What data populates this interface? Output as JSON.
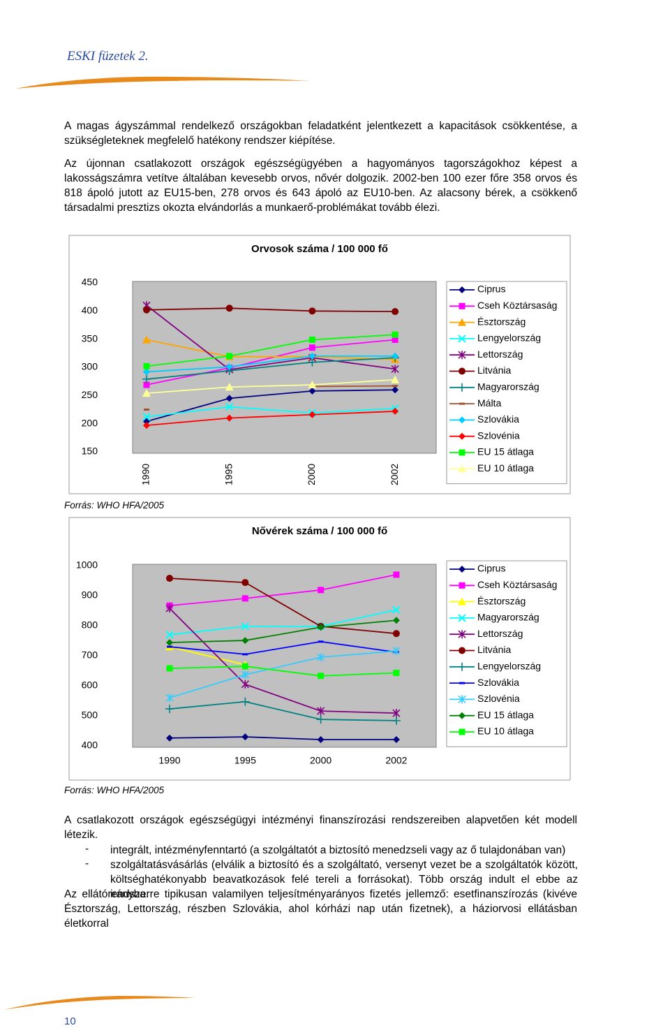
{
  "header": {
    "title": "ESKI füzetek 2."
  },
  "paragraphs": [
    "A magas ágyszámmal rendelkező országokban feladatként jelentkezett a kapacitások csökkentése, a szükségleteknek megfelelő hatékony rendszer kiépítése.",
    "Az újonnan csatlakozott országok egészségügyében a hagyományos tagországokhoz képest a lakosságszámra vetítve általában kevesebb orvos, nővér dolgozik. 2002-ben 100 ezer főre 358 orvos és 818 ápoló jutott az EU15-ben, 278 orvos és 643 ápoló az EU10-ben. Az alacsony bérek, a csökkenő társadalmi presztizs okozta elvándorlás a munkaerő-problémákat tovább élezi."
  ],
  "chart_data": [
    {
      "type": "line",
      "title": "Orvosok száma / 100 000 fő",
      "categories": [
        "1990",
        "1995",
        "2000",
        "2002"
      ],
      "ylim": [
        150,
        450
      ],
      "yticks": [
        150,
        200,
        250,
        300,
        350,
        400,
        450
      ],
      "grid": false,
      "legend": "right",
      "series": [
        {
          "name": "Ciprus",
          "color": "#000080",
          "marker": "diamond",
          "values": [
            204,
            245,
            258,
            260
          ]
        },
        {
          "name": "Cseh Köztársaság",
          "color": "#ff00ff",
          "marker": "square",
          "values": [
            269,
            299,
            335,
            349
          ]
        },
        {
          "name": "Észtország",
          "color": "#ffa500",
          "marker": "triangle",
          "values": [
            349,
            319,
            319,
            314
          ]
        },
        {
          "name": "Lengyelország",
          "color": "#00ffff",
          "marker": "x",
          "values": [
            212,
            230,
            219,
            227
          ]
        },
        {
          "name": "Lettország",
          "color": "#800080",
          "marker": "star",
          "values": [
            410,
            296,
            317,
            297
          ]
        },
        {
          "name": "Litvánia",
          "color": "#800000",
          "marker": "circle",
          "values": [
            402,
            405,
            400,
            399
          ]
        },
        {
          "name": "Magyarország",
          "color": "#008080",
          "marker": "plus",
          "values": [
            279,
            294,
            309,
            317
          ]
        },
        {
          "name": "Málta",
          "color": "#a0522d",
          "marker": "dash",
          "values": [
            225,
            null,
            266,
            267
          ]
        },
        {
          "name": "Szlovákia",
          "color": "#00ccff",
          "marker": "diamond",
          "values": [
            292,
            301,
            320,
            320
          ]
        },
        {
          "name": "Szlovénia",
          "color": "#ff0000",
          "marker": "diamond",
          "values": [
            197,
            210,
            216,
            222
          ]
        },
        {
          "name": "EU 15 átlaga",
          "color": "#00ff00",
          "marker": "square",
          "values": [
            302,
            320,
            349,
            358
          ]
        },
        {
          "name": "EU 10 átlaga",
          "color": "#ffff99",
          "marker": "triangle",
          "values": [
            254,
            265,
            269,
            278
          ]
        }
      ]
    },
    {
      "type": "line",
      "title": "Nővérek száma / 100 000 fő",
      "categories": [
        "1990",
        "1995",
        "2000",
        "2002"
      ],
      "ylim": [
        400,
        1000
      ],
      "yticks": [
        400,
        500,
        600,
        700,
        800,
        900,
        1000
      ],
      "grid": false,
      "legend": "right",
      "series": [
        {
          "name": "Ciprus",
          "color": "#000080",
          "marker": "diamond",
          "values": [
            426,
            430,
            421,
            421
          ]
        },
        {
          "name": "Cseh Köztársaság",
          "color": "#ff00ff",
          "marker": "square",
          "values": [
            867,
            891,
            919,
            970
          ]
        },
        {
          "name": "Észtország",
          "color": "#ffff00",
          "marker": "triangle",
          "values": [
            730,
            670,
            null,
            null
          ]
        },
        {
          "name": "Magyarország",
          "color": "#00ffff",
          "marker": "x",
          "values": [
            770,
            798,
            798,
            853
          ]
        },
        {
          "name": "Lettország",
          "color": "#800080",
          "marker": "star",
          "values": [
            858,
            605,
            516,
            509
          ]
        },
        {
          "name": "Litvánia",
          "color": "#800000",
          "marker": "circle",
          "values": [
            958,
            944,
            798,
            774
          ]
        },
        {
          "name": "Lengyelország",
          "color": "#008080",
          "marker": "plus",
          "values": [
            523,
            547,
            488,
            484
          ]
        },
        {
          "name": "Szlovákia",
          "color": "#0000ff",
          "marker": "dash",
          "values": [
            730,
            705,
            747,
            712
          ]
        },
        {
          "name": "Szlovénia",
          "color": "#33ccff",
          "marker": "star",
          "values": [
            560,
            637,
            695,
            716
          ]
        },
        {
          "name": "EU 15 átlaga",
          "color": "#008000",
          "marker": "diamond",
          "values": [
            744,
            751,
            795,
            818
          ]
        },
        {
          "name": "EU 10 átlaga",
          "color": "#00ff00",
          "marker": "square",
          "values": [
            658,
            665,
            633,
            643
          ]
        }
      ]
    }
  ],
  "sources": [
    "Forrás: WHO HFA/2005",
    "Forrás: WHO HFA/2005"
  ],
  "paragraphs_after": [
    "A csatlakozott országok egészségügyi intézményi finanszírozási rendszereiben alapvetően két modell létezik."
  ],
  "bullets": [
    "integrált, intézményfenntartó (a szolgáltatót a biztosító menedzseli vagy az ő tulajdonában van)",
    "szolgáltatásvásárlás (elválik a biztosító és a szolgáltató, versenyt vezet be a szolgáltatók között, költséghatékonyabb beavatkozások felé tereli a forrásokat). Több ország indult el ebbe az irányba."
  ],
  "closing": "Az ellátórendszerre tipikusan valamilyen teljesítményarányos fizetés jellemző: esetfinanszírozás (kivéve Észtország, Lettország, részben Szlovákia, ahol kórházi nap után fizetnek), a háziorvosi ellátásban életkorral",
  "footer": {
    "page_number": 10
  }
}
